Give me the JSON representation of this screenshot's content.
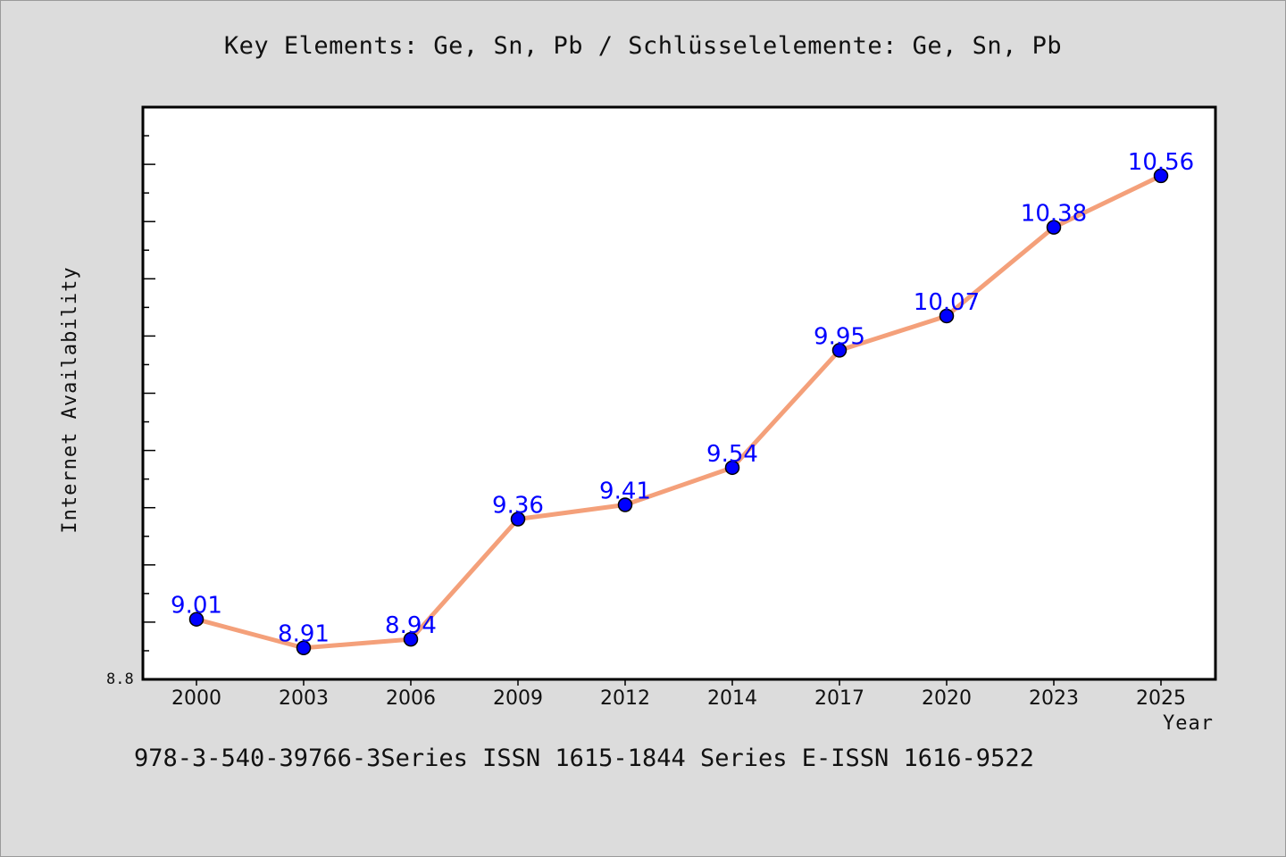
{
  "chart_data": {
    "type": "line",
    "title": "Key Elements: Ge, Sn, Pb / Schlüsselelemente: Ge, Sn, Pb",
    "xlabel": "Year",
    "ylabel": "Internet Availability",
    "categories": [
      "2000",
      "2003",
      "2006",
      "2009",
      "2012",
      "2014",
      "2017",
      "2020",
      "2023",
      "2025"
    ],
    "series": [
      {
        "values": [
          9.01,
          8.91,
          8.94,
          9.36,
          9.41,
          9.54,
          9.95,
          10.07,
          10.38,
          10.56
        ],
        "line_color": "#f4a07a",
        "marker_color": "#0000ff"
      }
    ],
    "data_labels": [
      "9.01",
      "8.91",
      "8.94",
      "9.36",
      "9.41",
      "9.54",
      "9.95",
      "10.07",
      "10.38",
      "10.56"
    ],
    "ylim": [
      8.8,
      10.8
    ],
    "ymin_label": "8.8",
    "grid": false,
    "legend": "none"
  },
  "footnote": "978-3-540-39766-3Series ISSN 1615-1844 Series E-ISSN 1616-9522"
}
